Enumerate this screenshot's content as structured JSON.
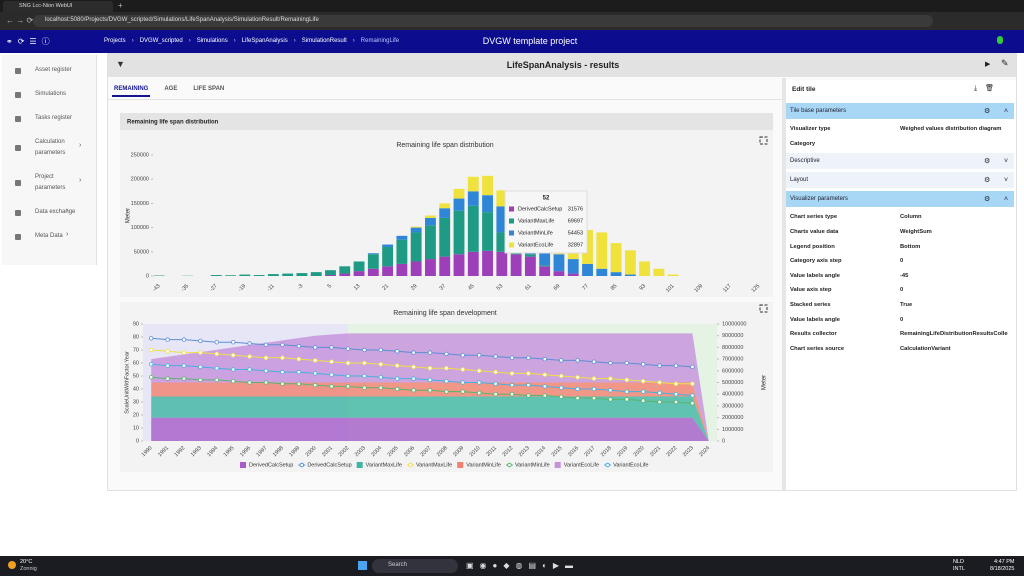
{
  "browser": {
    "tab": "SNG Lcc-Nion WebUI",
    "url": "localhost:5080/Projects/DVGW_scripted/Simulations/LifeSpanAnalysis/SimulationResult/RemainingLife"
  },
  "header": {
    "breadcrumb": [
      "Projects",
      "DVGW_scripted",
      "Simulations",
      "LifeSpanAnalysis",
      "SimulationResult",
      "RemainingLife"
    ],
    "project": "DVGW template project"
  },
  "sidebar": [
    {
      "label": "Asset register"
    },
    {
      "label": "Simulations"
    },
    {
      "label": "Tasks register"
    },
    {
      "label": "Calculation parameters",
      "submenu": true
    },
    {
      "label": "Project parameters",
      "submenu": true
    },
    {
      "label": "Data exchange",
      "submenu": true
    },
    {
      "label": "Meta Data",
      "submenu": true
    }
  ],
  "panel": {
    "title": "LifeSpanAnalysis - results",
    "tabs": [
      "REMAINING",
      "AGE",
      "LIFE SPAN"
    ],
    "active_tab": 0
  },
  "card_header": "Remaining life span distribution",
  "chart_data": [
    {
      "type": "bar",
      "stacked": true,
      "title": "Remaining life span distribution",
      "y_label": "Meter",
      "categories": [
        "-43",
        null,
        "-35",
        null,
        "-27",
        null,
        "-19",
        null,
        "-11",
        null,
        "-3",
        null,
        "5",
        null,
        "13",
        null,
        "21",
        null,
        "29",
        null,
        "37",
        null,
        "45",
        null,
        "53",
        null,
        "61",
        null,
        "69",
        null,
        "77",
        null,
        "85",
        null,
        "93",
        null,
        "101",
        null,
        "109",
        null,
        "117",
        null,
        "125"
      ],
      "series": [
        {
          "name": "DerivedCalcSetup",
          "color": "#9c3fb8",
          "values": [
            0,
            0,
            0,
            0,
            0,
            0,
            0,
            0,
            0,
            0,
            0,
            0,
            2000,
            5000,
            10000,
            15000,
            20000,
            25000,
            30000,
            35000,
            40000,
            45000,
            50000,
            52000,
            50000,
            45000,
            40000,
            20000,
            10000,
            5000,
            0,
            0,
            0,
            0,
            0,
            0,
            0,
            0,
            0,
            0,
            0,
            0,
            0
          ]
        },
        {
          "name": "VariantMaxLife",
          "color": "#1f9a84",
          "values": [
            1000,
            0,
            500,
            0,
            2000,
            1500,
            3000,
            2000,
            4000,
            5000,
            6000,
            8000,
            10000,
            15000,
            20000,
            30000,
            40000,
            50000,
            60000,
            70000,
            80000,
            90000,
            95000,
            80000,
            40000,
            10000,
            5000,
            2000,
            0,
            0,
            0,
            0,
            0,
            0,
            0,
            0,
            0,
            0,
            0,
            0,
            0,
            0,
            0
          ]
        },
        {
          "name": "VariantMinLife",
          "color": "#2f86d6",
          "values": [
            0,
            0,
            0,
            0,
            0,
            0,
            0,
            0,
            0,
            0,
            0,
            0,
            0,
            0,
            0,
            2000,
            5000,
            8000,
            10000,
            15000,
            20000,
            25000,
            30000,
            35000,
            54000,
            50000,
            45000,
            40000,
            35000,
            30000,
            25000,
            15000,
            8000,
            3000,
            0,
            0,
            0,
            0,
            0,
            0,
            0,
            0,
            0
          ]
        },
        {
          "name": "VariantEcoLife",
          "color": "#efe23c",
          "values": [
            0,
            0,
            0,
            0,
            0,
            0,
            0,
            0,
            0,
            0,
            0,
            0,
            0,
            0,
            0,
            0,
            0,
            0,
            2000,
            5000,
            10000,
            20000,
            30000,
            40000,
            33000,
            50000,
            55000,
            60000,
            50000,
            60000,
            70000,
            75000,
            60000,
            50000,
            30000,
            15000,
            3000,
            0,
            0,
            0,
            0,
            0,
            0
          ]
        }
      ],
      "ylim": [
        0,
        250000
      ],
      "yticks": [
        0,
        50000,
        100000,
        150000,
        200000,
        250000
      ],
      "tooltip": {
        "title": "52",
        "items": [
          {
            "name": "DerivedCalcSetup",
            "color": "#9c3fb8",
            "value": 31576
          },
          {
            "name": "VariantMaxLife",
            "color": "#1f9a84",
            "value": 69697
          },
          {
            "name": "VariantMinLife",
            "color": "#2f86d6",
            "value": 54453
          },
          {
            "name": "VariantEcoLife",
            "color": "#efe23c",
            "value": 32897
          }
        ]
      }
    },
    {
      "type": "combo",
      "title": "Remaining life span development",
      "y_label": "ScaleUnitWithFactor.Year",
      "y2_label": "Meter",
      "legend": "bottom",
      "categories": [
        "1990",
        "1991",
        "1992",
        "1993",
        "1994",
        "1995",
        "1996",
        "1997",
        "1998",
        "1999",
        "2000",
        "2001",
        "2002",
        "2003",
        "2004",
        "2005",
        "2006",
        "2007",
        "2008",
        "2009",
        "2010",
        "2011",
        "2012",
        "2013",
        "2014",
        "2015",
        "2016",
        "2017",
        "2018",
        "2019",
        "2020",
        "2021",
        "2022",
        "2023",
        "2024"
      ],
      "ylim": [
        0,
        90
      ],
      "yticks": [
        0,
        10,
        20,
        30,
        40,
        50,
        60,
        70,
        80,
        90
      ],
      "y2lim": [
        0,
        10000000
      ],
      "y2ticks": [
        0,
        1000000,
        2000000,
        3000000,
        4000000,
        5000000,
        6000000,
        7000000,
        8000000,
        9000000,
        10000000
      ],
      "series": [
        {
          "name": "DerivedCalcSetup",
          "kind": "area",
          "axis": "y2",
          "color": "#a65cc9",
          "values": [
            2000000,
            2000000,
            2000000,
            2000000,
            2000000,
            2000000,
            2000000,
            2000000,
            2000000,
            2000000,
            2000000,
            2000000,
            2000000,
            2000000,
            2000000,
            2000000,
            2000000,
            2000000,
            2000000,
            2000000,
            2000000,
            2000000,
            2000000,
            2000000,
            2000000,
            2000000,
            2000000,
            2000000,
            2000000,
            2000000,
            2000000,
            2000000,
            2000000,
            2000000,
            0
          ]
        },
        {
          "name": "DerivedCalcSetup",
          "kind": "line",
          "axis": "y",
          "color": "#5a8fd8",
          "values": [
            79,
            78,
            78,
            77,
            76,
            76,
            75,
            74,
            74,
            73,
            72,
            72,
            71,
            70,
            70,
            69,
            68,
            68,
            67,
            66,
            66,
            65,
            64,
            64,
            63,
            62,
            62,
            61,
            60,
            60,
            59,
            58,
            58,
            57,
            null
          ]
        },
        {
          "name": "VariantMaxLife",
          "kind": "area",
          "axis": "y2",
          "color": "#3fb5a2",
          "values": [
            1800000,
            1800000,
            1800000,
            1800000,
            1800000,
            1800000,
            1800000,
            1800000,
            1800000,
            1800000,
            1800000,
            1800000,
            1800000,
            1800000,
            1800000,
            1800000,
            1800000,
            1800000,
            1800000,
            1800000,
            1800000,
            1800000,
            1800000,
            1800000,
            1800000,
            1800000,
            1800000,
            1800000,
            1800000,
            1800000,
            1800000,
            1800000,
            1800000,
            1800000,
            0
          ]
        },
        {
          "name": "VariantMaxLife",
          "kind": "line",
          "axis": "y",
          "color": "#f2de45",
          "values": [
            70,
            69,
            68,
            68,
            67,
            66,
            65,
            64,
            64,
            63,
            62,
            61,
            60,
            60,
            59,
            58,
            57,
            56,
            56,
            55,
            54,
            53,
            52,
            52,
            51,
            50,
            49,
            48,
            48,
            47,
            46,
            45,
            44,
            44,
            null
          ]
        },
        {
          "name": "VariantMinLife",
          "kind": "area",
          "axis": "y2",
          "color": "#f2806f",
          "values": [
            1200000,
            1200000,
            1200000,
            1200000,
            1200000,
            1200000,
            1200000,
            1200000,
            1200000,
            1200000,
            1200000,
            1200000,
            1200000,
            1200000,
            1200000,
            1200000,
            1200000,
            1200000,
            1200000,
            1200000,
            1200000,
            1200000,
            1200000,
            1200000,
            1200000,
            1200000,
            1200000,
            1200000,
            1200000,
            1200000,
            1200000,
            1200000,
            1200000,
            1200000,
            0
          ]
        },
        {
          "name": "VariantMinLife",
          "kind": "line",
          "axis": "y",
          "color": "#5bb46c",
          "values": [
            49,
            48,
            48,
            47,
            47,
            46,
            45,
            45,
            44,
            44,
            43,
            42,
            42,
            41,
            41,
            40,
            39,
            39,
            38,
            38,
            37,
            36,
            36,
            35,
            35,
            34,
            33,
            33,
            32,
            32,
            31,
            30,
            30,
            29,
            null
          ]
        },
        {
          "name": "VariantEcoLife",
          "kind": "area",
          "axis": "y2",
          "color": "#c690dc",
          "values": [
            2000000,
            2200000,
            2400000,
            2600000,
            2800000,
            3000000,
            3200000,
            3400000,
            3600000,
            3800000,
            4000000,
            4100000,
            4200000,
            4200000,
            4200000,
            4200000,
            4200000,
            4200000,
            4200000,
            4200000,
            4200000,
            4200000,
            4200000,
            4200000,
            4200000,
            4200000,
            4200000,
            4200000,
            4200000,
            4200000,
            4200000,
            4200000,
            4200000,
            4200000,
            0
          ]
        },
        {
          "name": "VariantEcoLife",
          "kind": "line",
          "axis": "y",
          "color": "#4aaee0",
          "values": [
            59,
            58,
            58,
            57,
            56,
            55,
            55,
            54,
            53,
            53,
            52,
            51,
            50,
            50,
            49,
            48,
            48,
            47,
            46,
            45,
            45,
            44,
            43,
            43,
            42,
            41,
            40,
            40,
            39,
            38,
            38,
            37,
            36,
            35,
            null
          ]
        }
      ]
    }
  ],
  "editor": {
    "title": "Edit tile",
    "items": [
      {
        "section": "Tile base parameters",
        "expanded": true
      },
      {
        "label": "Visualizer type",
        "value": "Weighed values distribution diagram"
      },
      {
        "label": "Category"
      },
      {
        "section": "Descriptive",
        "expanded": false
      },
      {
        "section": "Layout",
        "expanded": false
      },
      {
        "section": "Visualizer parameters",
        "expanded": true
      },
      {
        "label": "Chart series type",
        "value": "Column"
      },
      {
        "label": "Charts value data",
        "value": "WeightSum"
      },
      {
        "label": "Legend position",
        "value": "Bottom"
      },
      {
        "label": "Category axis step",
        "value": "0"
      },
      {
        "label": "Value labels angle",
        "value": "-45"
      },
      {
        "label": "Value axis step",
        "value": "0"
      },
      {
        "label": "Stacked series",
        "value": "True"
      },
      {
        "label": "Value labels angle",
        "value": "0"
      },
      {
        "label": "Results collector",
        "value": "RemainingLifeDistributionResultsCollecto"
      },
      {
        "label": "Chart series source",
        "value": "CalculationVariant"
      }
    ]
  },
  "taskbar": {
    "temperature": "20°C",
    "weather": "Zonnig",
    "search": "Search",
    "language": "NLD",
    "layout": "INTL",
    "time": "4:47 PM",
    "date": "8/18/2025"
  }
}
